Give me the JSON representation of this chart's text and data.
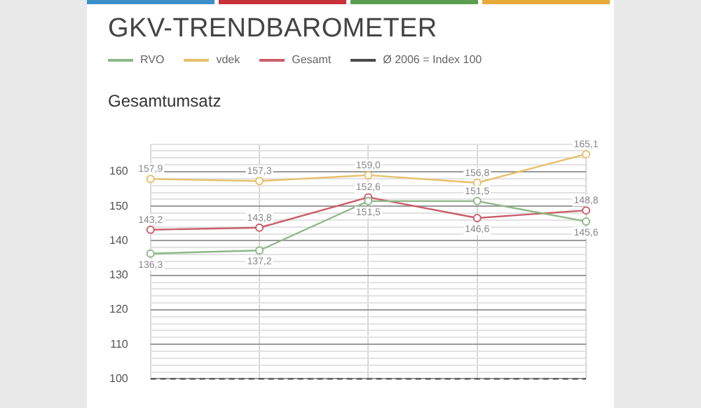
{
  "chart_data": {
    "type": "line",
    "title": "GKV-TRENDBAROMETER",
    "subtitle": "Gesamtumsatz",
    "categories": [
      null,
      null,
      null,
      null,
      null
    ],
    "series": [
      {
        "name": "RVO",
        "color": "#8db887",
        "values": [
          136.3,
          137.2,
          151.5,
          151.5,
          145.6
        ],
        "value_labels": [
          "136,3",
          "137,2",
          "151,5",
          "151,5",
          "145,6"
        ]
      },
      {
        "name": "vdek",
        "color": "#e6c06a",
        "values": [
          157.9,
          157.3,
          159.0,
          156.8,
          165.1
        ],
        "value_labels": [
          "157,9",
          "157,3",
          "159,0",
          "156,8",
          "165,1"
        ]
      },
      {
        "name": "Gesamt",
        "color": "#c95f6a",
        "values": [
          143.2,
          143.8,
          152.6,
          146.6,
          148.8
        ],
        "value_labels": [
          "143,2",
          "143,8",
          "152,6",
          "146,6",
          "148,8"
        ]
      }
    ],
    "ref_lines": [
      {
        "axis": "y",
        "value": 100,
        "label": "Ø 2006 = Index 100",
        "color": "#4a4a4a",
        "line_style": "dashed"
      }
    ],
    "ylim": [
      100,
      168
    ],
    "yticks": [
      100,
      {
        "value": 102,
        "label": null
      },
      {
        "value": 104,
        "label": null
      },
      {
        "value": 106,
        "label": null
      },
      {
        "value": 108,
        "label": null
      },
      110,
      {
        "value": 112,
        "label": null
      },
      {
        "value": 114,
        "label": null
      },
      {
        "value": 116,
        "label": null
      },
      {
        "value": 118,
        "label": null
      },
      120,
      {
        "value": 122,
        "label": null
      },
      {
        "value": 124,
        "label": null
      },
      {
        "value": 126,
        "label": null
      },
      {
        "value": 128,
        "label": null
      },
      130,
      {
        "value": 132,
        "label": null
      },
      {
        "value": 134,
        "label": null
      },
      {
        "value": 136,
        "label": null
      },
      {
        "value": 138,
        "label": null
      },
      140,
      {
        "value": 142,
        "label": null
      },
      {
        "value": 144,
        "label": null
      },
      {
        "value": 146,
        "label": null
      },
      {
        "value": 148,
        "label": null
      },
      150,
      {
        "value": 152,
        "label": null
      },
      {
        "value": 154,
        "label": null
      },
      {
        "value": 156,
        "label": null
      },
      {
        "value": 158,
        "label": null
      },
      160,
      {
        "value": 162,
        "label": null
      },
      {
        "value": 164,
        "label": null
      },
      {
        "value": 166,
        "label": null
      },
      {
        "value": 168,
        "label": null
      }
    ],
    "grid": true,
    "legend": "top left",
    "marker": "circle",
    "line_style": "solid",
    "tick_labels": "y"
  }
}
